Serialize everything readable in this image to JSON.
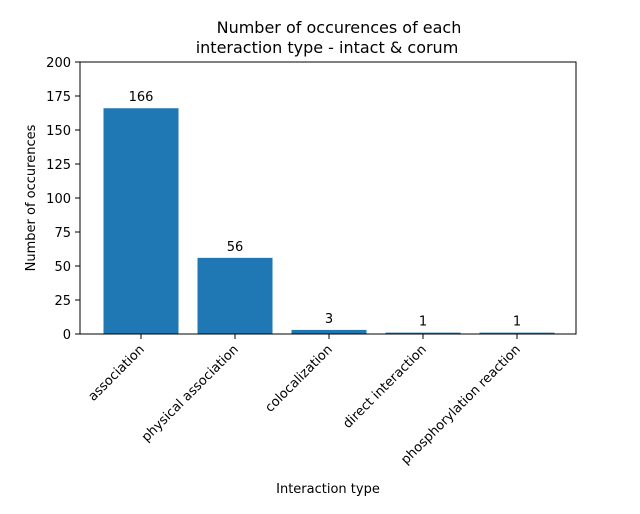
{
  "chart_data": {
    "type": "bar",
    "title_lines": [
      "Number of occurences of each",
      "interaction type - intact & corum"
    ],
    "xlabel": "Interaction type",
    "ylabel": "Number of occurences",
    "categories": [
      "association",
      "physical association",
      "colocalization",
      "direct interaction",
      "phosphorylation reaction"
    ],
    "values": [
      166,
      56,
      3,
      1,
      1
    ],
    "data_labels": [
      "166",
      "56",
      "3",
      "1",
      "1"
    ],
    "ylim": [
      0,
      200
    ],
    "yticks": [
      0,
      25,
      50,
      75,
      100,
      125,
      150,
      175,
      200
    ],
    "grid": false,
    "bar_color": "#1f77b4"
  }
}
